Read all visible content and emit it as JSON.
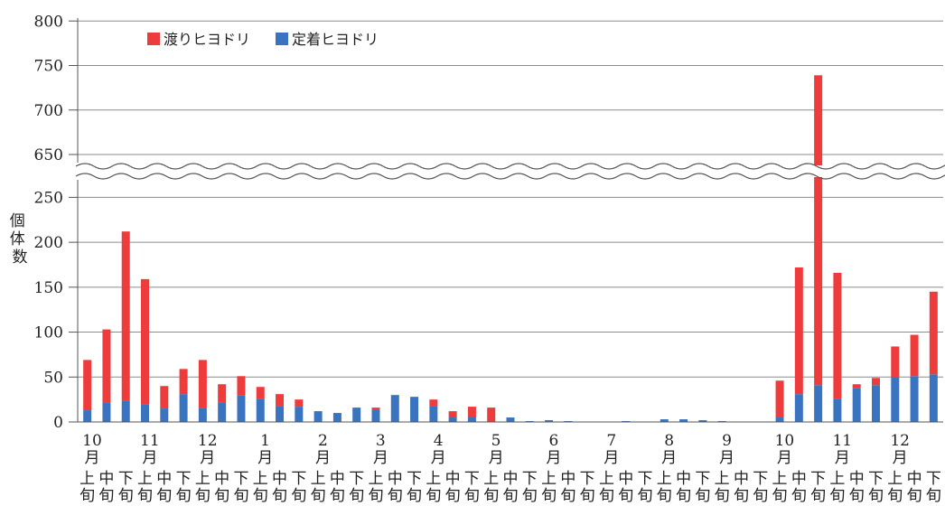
{
  "chart_data": {
    "type": "bar",
    "stacked": true,
    "axis_break": "between 250 and 650",
    "ylabel": "個体数",
    "y_ticks": [
      "0",
      "50",
      "100",
      "150",
      "200",
      "250",
      "650",
      "700",
      "750",
      "800"
    ],
    "months": [
      "10\n月",
      "11\n月",
      "12\n月",
      "1\n月",
      "2\n月",
      "3\n月",
      "4\n月",
      "5\n月",
      "6\n月",
      "7\n月",
      "8\n月",
      "9\n月",
      "10\n月",
      "11\n月",
      "12\n月"
    ],
    "decades": [
      "上\n旬",
      "中\n旬",
      "下\n旬"
    ],
    "grid": true,
    "legend_position": "top-left",
    "series": [
      {
        "name": "定着ヒヨドリ",
        "color": "#3a74c0",
        "values": [
          13,
          22,
          24,
          20,
          15,
          31,
          16,
          22,
          30,
          26,
          18,
          17,
          12,
          10,
          16,
          14,
          30,
          28,
          18,
          5,
          5,
          0,
          5,
          1,
          2,
          1,
          0,
          0,
          1,
          0,
          3,
          3,
          2,
          1,
          0,
          0,
          5,
          31,
          41,
          26,
          38,
          41,
          50,
          51,
          53
        ]
      },
      {
        "name": "渡りヒヨドリ",
        "color": "#ee3b3b",
        "values": [
          56,
          81,
          188,
          139,
          25,
          28,
          53,
          20,
          21,
          13,
          13,
          8,
          0,
          0,
          0,
          2,
          0,
          0,
          7,
          7,
          12,
          16,
          0,
          0,
          0,
          0,
          0,
          0,
          0,
          0,
          0,
          0,
          0,
          0,
          0,
          0,
          41,
          141,
          698,
          140,
          4,
          8,
          34,
          46,
          92
        ]
      }
    ]
  }
}
